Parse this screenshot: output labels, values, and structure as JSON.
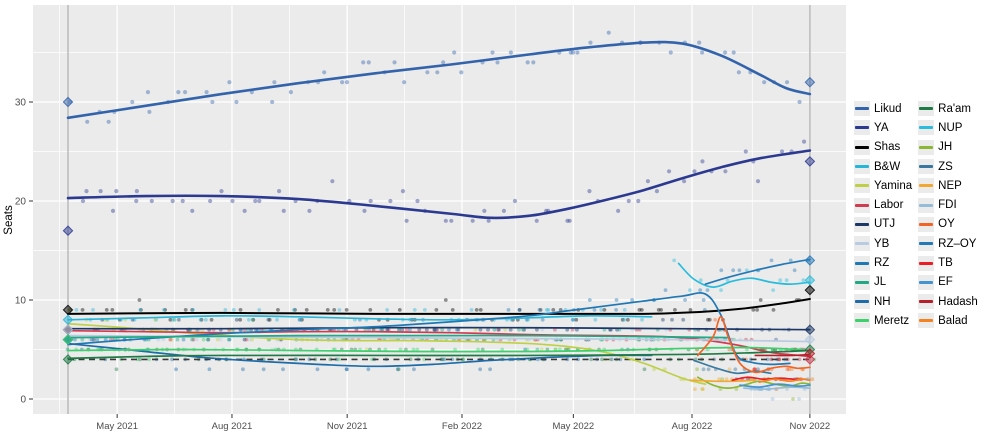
{
  "ylabel": "Seats",
  "axis": {
    "text_color": "#4d4d4d",
    "tick_color": "#333333",
    "y_ticks": [
      0,
      10,
      20,
      30
    ],
    "x_ticks": [
      {
        "label": "May 2021",
        "m": 1.28
      },
      {
        "label": "Aug 2021",
        "m": 4.27
      },
      {
        "label": "Nov 2021",
        "m": 7.27
      },
      {
        "label": "Feb 2022",
        "m": 10.26
      },
      {
        "label": "May 2022",
        "m": 13.16
      },
      {
        "label": "Aug 2022",
        "m": 16.25
      },
      {
        "label": "Nov 2022",
        "m": 19.32
      }
    ]
  },
  "chart_data": {
    "type": "scatter",
    "description": "Israeli Knesset seat polling, Mar 2021 election to Nov 2022 election; x in months after Mar-2021 election, y in seats; smoothed trend lines over individual poll dots; diamonds mark actual election results",
    "panel_bg": "#ebebeb",
    "grid_color": "#ffffff",
    "xlim": [
      -0.9,
      20.2
    ],
    "ylim": [
      -1.5,
      39.8
    ],
    "election_lines_m": [
      0,
      19.32
    ],
    "election_line_color": "#bdbdbd",
    "threshold": {
      "y": 4,
      "color": "#3a3a3a",
      "width": 1.6,
      "dash": "6 4.5",
      "name": "electoral-threshold"
    },
    "legend_split": 12,
    "series": [
      {
        "name": "Likud",
        "color": "#3263ab",
        "width": 2.6,
        "result_start": 30,
        "result_end": 32,
        "points": [
          [
            0,
            28.4
          ],
          [
            2,
            29.6
          ],
          [
            4,
            30.8
          ],
          [
            6,
            31.9
          ],
          [
            8,
            32.9
          ],
          [
            10,
            33.8
          ],
          [
            12,
            34.8
          ],
          [
            13.5,
            35.5
          ],
          [
            15,
            36.0
          ],
          [
            16,
            35.9
          ],
          [
            17,
            34.7
          ],
          [
            18,
            32.8
          ],
          [
            18.7,
            31.4
          ],
          [
            19.32,
            30.8
          ]
        ]
      },
      {
        "name": "YA",
        "color": "#2b3990",
        "width": 2.6,
        "result_start": 17,
        "result_end": 24,
        "points": [
          [
            0,
            20.3
          ],
          [
            2,
            20.5
          ],
          [
            4,
            20.5
          ],
          [
            6,
            20.2
          ],
          [
            8,
            19.5
          ],
          [
            10,
            18.7
          ],
          [
            11,
            18.3
          ],
          [
            12,
            18.5
          ],
          [
            13,
            19.2
          ],
          [
            14,
            20.1
          ],
          [
            15,
            21.1
          ],
          [
            16,
            22.3
          ],
          [
            17,
            23.4
          ],
          [
            18,
            24.3
          ],
          [
            19.32,
            25.1
          ]
        ]
      },
      {
        "name": "Shas",
        "color": "#000000",
        "width": 2.0,
        "result_start": 9,
        "result_end": 11,
        "points": [
          [
            0,
            8.6
          ],
          [
            4,
            8.7
          ],
          [
            8,
            8.6
          ],
          [
            12,
            8.6
          ],
          [
            15,
            8.6
          ],
          [
            16.5,
            8.8
          ],
          [
            17.5,
            9.1
          ],
          [
            18.5,
            9.6
          ],
          [
            19.32,
            10.1
          ]
        ]
      },
      {
        "name": "B&W",
        "color": "#27b5d8",
        "width": 1.7,
        "result_start": 8,
        "points": [
          [
            0,
            8.0
          ],
          [
            2,
            8.2
          ],
          [
            4,
            8.4
          ],
          [
            6,
            8.3
          ],
          [
            8,
            8.1
          ],
          [
            10,
            8.0
          ],
          [
            12,
            8.2
          ],
          [
            13.5,
            8.4
          ],
          [
            15.2,
            8.3
          ]
        ]
      },
      {
        "name": "Yamina",
        "color": "#bfd048",
        "width": 1.7,
        "result_start": 7,
        "points": [
          [
            0,
            7.6
          ],
          [
            1.5,
            7.2
          ],
          [
            3,
            6.7
          ],
          [
            4.5,
            6.3
          ],
          [
            6,
            6.0
          ],
          [
            7.5,
            5.9
          ],
          [
            9,
            5.9
          ],
          [
            10.5,
            5.8
          ],
          [
            12,
            5.6
          ],
          [
            13,
            5.3
          ],
          [
            14,
            4.7
          ],
          [
            15,
            3.6
          ],
          [
            16,
            2.1
          ],
          [
            16.6,
            1.5
          ]
        ]
      },
      {
        "name": "Labor",
        "color": "#d13b50",
        "width": 1.7,
        "result_start": 7,
        "result_end": 4,
        "points": [
          [
            0,
            6.9
          ],
          [
            2,
            6.8
          ],
          [
            4,
            6.7
          ],
          [
            6,
            6.8
          ],
          [
            8,
            6.8
          ],
          [
            10,
            6.7
          ],
          [
            12,
            6.5
          ],
          [
            14,
            6.4
          ],
          [
            15.5,
            6.3
          ],
          [
            16.5,
            6.0
          ],
          [
            17.5,
            5.4
          ],
          [
            18.3,
            4.7
          ],
          [
            19.32,
            4.3
          ]
        ]
      },
      {
        "name": "UTJ",
        "color": "#1b3766",
        "width": 1.7,
        "result_start": 7,
        "result_end": 7,
        "points": [
          [
            0,
            7.1
          ],
          [
            4,
            7.1
          ],
          [
            8,
            7.2
          ],
          [
            12,
            7.2
          ],
          [
            16,
            7.1
          ],
          [
            19.32,
            7.0
          ]
        ]
      },
      {
        "name": "YB",
        "color": "#b8cbe0",
        "width": 1.7,
        "result_start": 7,
        "result_end": 6,
        "points": [
          [
            0,
            6.4
          ],
          [
            4,
            6.3
          ],
          [
            8,
            6.2
          ],
          [
            12,
            6.1
          ],
          [
            16,
            6.0
          ],
          [
            19.32,
            5.8
          ]
        ]
      },
      {
        "name": "RZ",
        "color": "#1f78b4",
        "width": 1.7,
        "result_start": 6,
        "points": [
          [
            0,
            5.5
          ],
          [
            2,
            6.1
          ],
          [
            4,
            6.6
          ],
          [
            6,
            7.0
          ],
          [
            8,
            7.3
          ],
          [
            10,
            7.8
          ],
          [
            12,
            8.4
          ],
          [
            13,
            8.9
          ],
          [
            14,
            9.4
          ],
          [
            15,
            9.9
          ],
          [
            16,
            10.4
          ],
          [
            16.6,
            10.6
          ],
          [
            17,
            8.5
          ],
          [
            17.4,
            4.5
          ],
          [
            17.8,
            3.7
          ],
          [
            18.3,
            3.5
          ],
          [
            18.8,
            3.6
          ]
        ]
      },
      {
        "name": "JL",
        "color": "#22a884",
        "width": 1.7,
        "result_start": 6,
        "points": [
          [
            0,
            6.2
          ],
          [
            3,
            6.3
          ],
          [
            6,
            6.4
          ],
          [
            9,
            6.4
          ],
          [
            12,
            6.4
          ],
          [
            15,
            6.3
          ],
          [
            17.2,
            6.2
          ]
        ]
      },
      {
        "name": "NH",
        "color": "#1d6ba8",
        "width": 1.7,
        "result_start": 6,
        "points": [
          [
            0,
            5.6
          ],
          [
            1,
            5.2
          ],
          [
            2,
            4.8
          ],
          [
            3.5,
            4.2
          ],
          [
            5,
            3.8
          ],
          [
            6.5,
            3.5
          ],
          [
            8,
            3.3
          ],
          [
            9.5,
            3.5
          ],
          [
            11,
            3.9
          ],
          [
            12.5,
            4.2
          ],
          [
            14,
            4.4
          ],
          [
            15.2,
            4.4
          ]
        ]
      },
      {
        "name": "Meretz",
        "color": "#3fd06e",
        "width": 1.7,
        "result_start": 6,
        "points": [
          [
            0,
            4.9
          ],
          [
            3,
            5.0
          ],
          [
            6,
            4.9
          ],
          [
            9,
            4.8
          ],
          [
            12,
            4.8
          ],
          [
            14,
            4.9
          ],
          [
            16,
            5.1
          ],
          [
            17.5,
            5.2
          ],
          [
            18.5,
            5.1
          ],
          [
            19.32,
            4.9
          ]
        ]
      },
      {
        "name": "Ra'am",
        "color": "#1e7b45",
        "width": 1.7,
        "result_start": 4,
        "result_end": 5,
        "points": [
          [
            0,
            4.1
          ],
          [
            2,
            4.3
          ],
          [
            4,
            4.4
          ],
          [
            8,
            4.4
          ],
          [
            12,
            4.4
          ],
          [
            16,
            4.5
          ],
          [
            18,
            4.7
          ],
          [
            19.32,
            4.9
          ]
        ]
      },
      {
        "name": "NUP",
        "color": "#29bcdc",
        "width": 1.7,
        "result_end": 12,
        "points": [
          [
            15.9,
            13.7
          ],
          [
            16.3,
            12.1
          ],
          [
            16.8,
            11.3
          ],
          [
            17.3,
            11.9
          ],
          [
            17.8,
            12.2
          ],
          [
            18.3,
            11.8
          ],
          [
            18.8,
            11.6
          ],
          [
            19.32,
            11.8
          ]
        ]
      },
      {
        "name": "JH",
        "color": "#8ab832",
        "width": 1.7,
        "points": [
          [
            16.4,
            2.2
          ],
          [
            16.8,
            1.4
          ],
          [
            17.2,
            1.1
          ],
          [
            17.6,
            1.4
          ],
          [
            18.0,
            1.8
          ],
          [
            18.4,
            1.5
          ],
          [
            18.8,
            1.3
          ],
          [
            19.1,
            1.6
          ],
          [
            19.32,
            1.5
          ]
        ]
      },
      {
        "name": "ZS",
        "color": "#38789f",
        "width": 1.7,
        "points": [
          [
            16.3,
            3.9
          ],
          [
            16.9,
            3.1
          ],
          [
            17.4,
            2.6
          ],
          [
            17.9,
            2.8
          ],
          [
            18.3,
            2.6
          ]
        ]
      },
      {
        "name": "NEP",
        "color": "#f0a832",
        "width": 1.7,
        "points": [
          [
            16.2,
            1.9
          ],
          [
            16.8,
            1.8
          ],
          [
            17.4,
            1.8
          ],
          [
            17.9,
            1.9
          ]
        ]
      },
      {
        "name": "FDI",
        "color": "#96bcd8",
        "width": 1.7,
        "points": [
          [
            17.6,
            1.1
          ],
          [
            18.2,
            1.0
          ],
          [
            18.8,
            1.2
          ],
          [
            19.32,
            1.1
          ]
        ]
      },
      {
        "name": "OY",
        "color": "#f26425",
        "width": 1.7,
        "points": [
          [
            16.4,
            4.4
          ],
          [
            16.8,
            6.3
          ],
          [
            17.0,
            8.3
          ],
          [
            17.2,
            6.2
          ],
          [
            17.5,
            3.6
          ],
          [
            17.9,
            2.7
          ],
          [
            18.3,
            3.1
          ],
          [
            18.7,
            3.3
          ],
          [
            19.0,
            3.1
          ],
          [
            19.32,
            3.2
          ]
        ]
      },
      {
        "name": "RZ–OY",
        "color": "#2379b8",
        "width": 1.7,
        "result_end": 14,
        "points": [
          [
            16.6,
            11.6
          ],
          [
            17.2,
            12.3
          ],
          [
            17.9,
            13.0
          ],
          [
            18.6,
            13.6
          ],
          [
            19.32,
            14.1
          ]
        ]
      },
      {
        "name": "TB",
        "color": "#ec1c24",
        "width": 1.7,
        "points": [
          [
            17.3,
            1.9
          ],
          [
            17.7,
            2.2
          ],
          [
            18.1,
            2.0
          ],
          [
            18.5,
            2.1
          ],
          [
            18.9,
            2.0
          ],
          [
            19.2,
            2.0
          ]
        ]
      },
      {
        "name": "EF",
        "color": "#4493d1",
        "width": 1.7,
        "points": [
          [
            17.5,
            1.4
          ],
          [
            18.0,
            1.2
          ],
          [
            18.5,
            1.5
          ],
          [
            19.0,
            1.3
          ],
          [
            19.32,
            1.4
          ]
        ]
      },
      {
        "name": "Hadash",
        "color": "#b51f29",
        "width": 1.7,
        "result_end": 4.6,
        "points": [
          [
            17.9,
            4.4
          ],
          [
            18.4,
            4.4
          ],
          [
            18.9,
            4.4
          ],
          [
            19.32,
            4.5
          ]
        ]
      },
      {
        "name": "Balad",
        "color": "#f58220",
        "width": 1.7,
        "points": [
          [
            18.0,
            1.7
          ],
          [
            18.4,
            2.0
          ],
          [
            18.8,
            1.8
          ],
          [
            19.1,
            2.0
          ],
          [
            19.32,
            1.9
          ]
        ]
      }
    ]
  }
}
